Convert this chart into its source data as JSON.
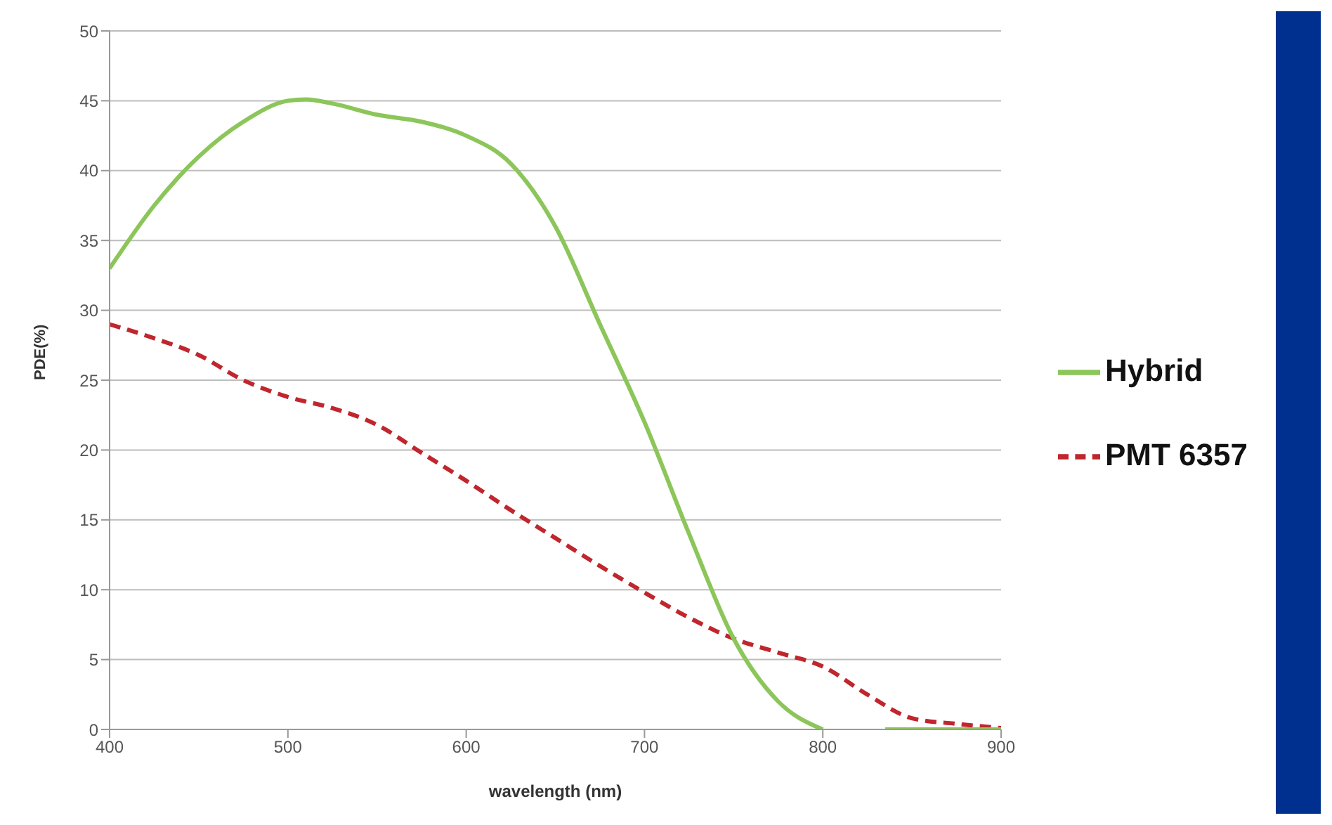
{
  "chart_data": {
    "type": "line",
    "xlabel": "wavelength (nm)",
    "ylabel": "PDE(%)",
    "xlim": [
      400,
      900
    ],
    "xticks": [
      400,
      500,
      600,
      700,
      800,
      900
    ],
    "ylim": [
      0,
      50
    ],
    "yticks": [
      0,
      5,
      10,
      15,
      20,
      25,
      30,
      35,
      40,
      45,
      50
    ],
    "grid": "y",
    "legend": "right",
    "marker": "none",
    "series": [
      {
        "name": "PMT 6357",
        "color": "#c0262d",
        "line_style": "dashed",
        "x": [
          400,
          425,
          450,
          475,
          500,
          525,
          550,
          575,
          600,
          625,
          650,
          675,
          700,
          725,
          750,
          775,
          800,
          825,
          850,
          875,
          900
        ],
        "values": [
          29,
          28,
          26.8,
          25,
          23.8,
          23,
          21.8,
          19.8,
          17.8,
          15.7,
          13.7,
          11.7,
          9.8,
          8,
          6.5,
          5.5,
          4.5,
          2.5,
          0.8,
          0.4,
          0.1
        ]
      },
      {
        "name": "Hybrid",
        "color": "#8cc65a",
        "line_style": "solid",
        "x": [
          400,
          425,
          450,
          475,
          500,
          510,
          525,
          550,
          575,
          600,
          625,
          650,
          675,
          700,
          725,
          750,
          775,
          800,
          820,
          835,
          860,
          900
        ],
        "values": [
          33,
          37.5,
          41,
          43.5,
          45,
          45.1,
          44.8,
          44,
          43.5,
          42.5,
          40.5,
          36,
          29,
          22,
          14,
          6.5,
          2,
          0,
          null,
          0,
          0,
          0
        ]
      }
    ]
  }
}
